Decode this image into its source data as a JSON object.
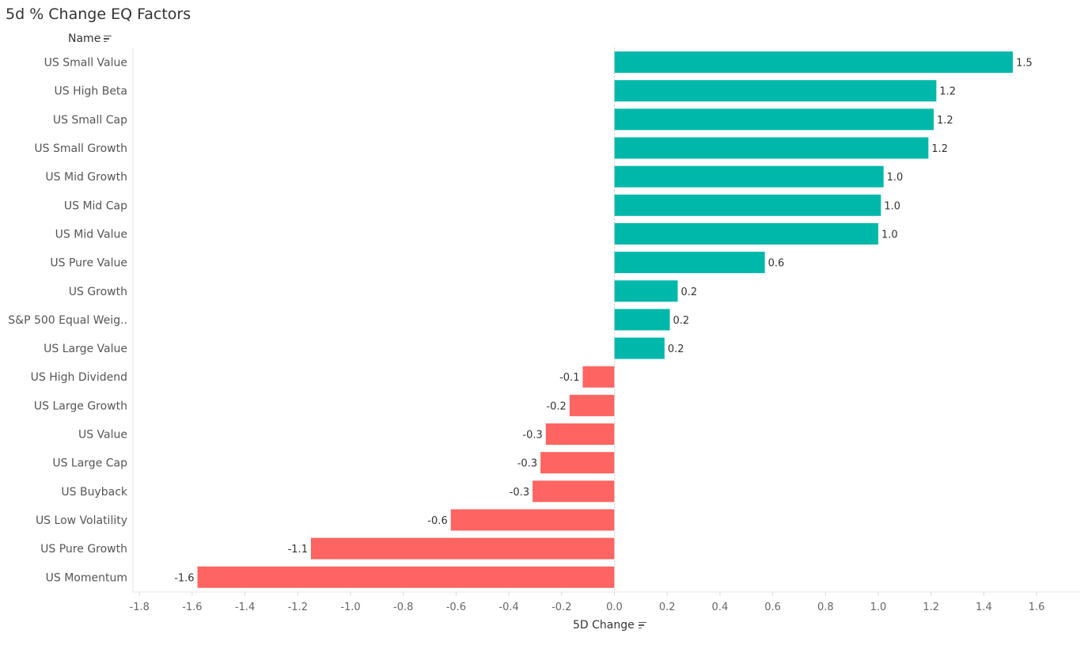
{
  "title": "5d % Change EQ Factors",
  "name_header": "Name",
  "chart_data": {
    "type": "bar",
    "orientation": "horizontal",
    "title": "5d % Change EQ Factors",
    "xlabel": "5D Change",
    "ylabel": "Name",
    "xlim": [
      -1.8,
      1.6
    ],
    "xticks": [
      "-1.8",
      "-1.6",
      "-1.4",
      "-1.2",
      "-1.0",
      "-0.8",
      "-0.6",
      "-0.4",
      "-0.2",
      "0.0",
      "0.2",
      "0.4",
      "0.6",
      "0.8",
      "1.0",
      "1.2",
      "1.4",
      "1.6"
    ],
    "categories": [
      "US Small Value",
      "US High Beta",
      "US Small Cap",
      "US Small Growth",
      "US Mid Growth",
      "US Mid Cap",
      "US Mid Value",
      "US Pure Value",
      "US Growth",
      "S&P 500 Equal Weig..",
      "US Large Value",
      "US High Dividend",
      "US Large Growth",
      "US Value",
      "US Large Cap",
      "US Buyback",
      "US Low Volatility",
      "US Pure Growth",
      "US Momentum"
    ],
    "values": [
      1.51,
      1.22,
      1.21,
      1.19,
      1.02,
      1.01,
      1.0,
      0.57,
      0.24,
      0.21,
      0.19,
      -0.12,
      -0.17,
      -0.26,
      -0.28,
      -0.31,
      -0.62,
      -1.15,
      -1.58
    ],
    "value_labels": [
      "1.5",
      "1.2",
      "1.2",
      "1.2",
      "1.0",
      "1.0",
      "1.0",
      "0.6",
      "0.2",
      "0.2",
      "0.2",
      "-0.1",
      "-0.2",
      "-0.3",
      "-0.3",
      "-0.3",
      "-0.6",
      "-1.1",
      "-1.6"
    ],
    "colors": {
      "positive": "#00b8aa",
      "negative": "#fe6461"
    },
    "grid": false,
    "legend": "none"
  }
}
